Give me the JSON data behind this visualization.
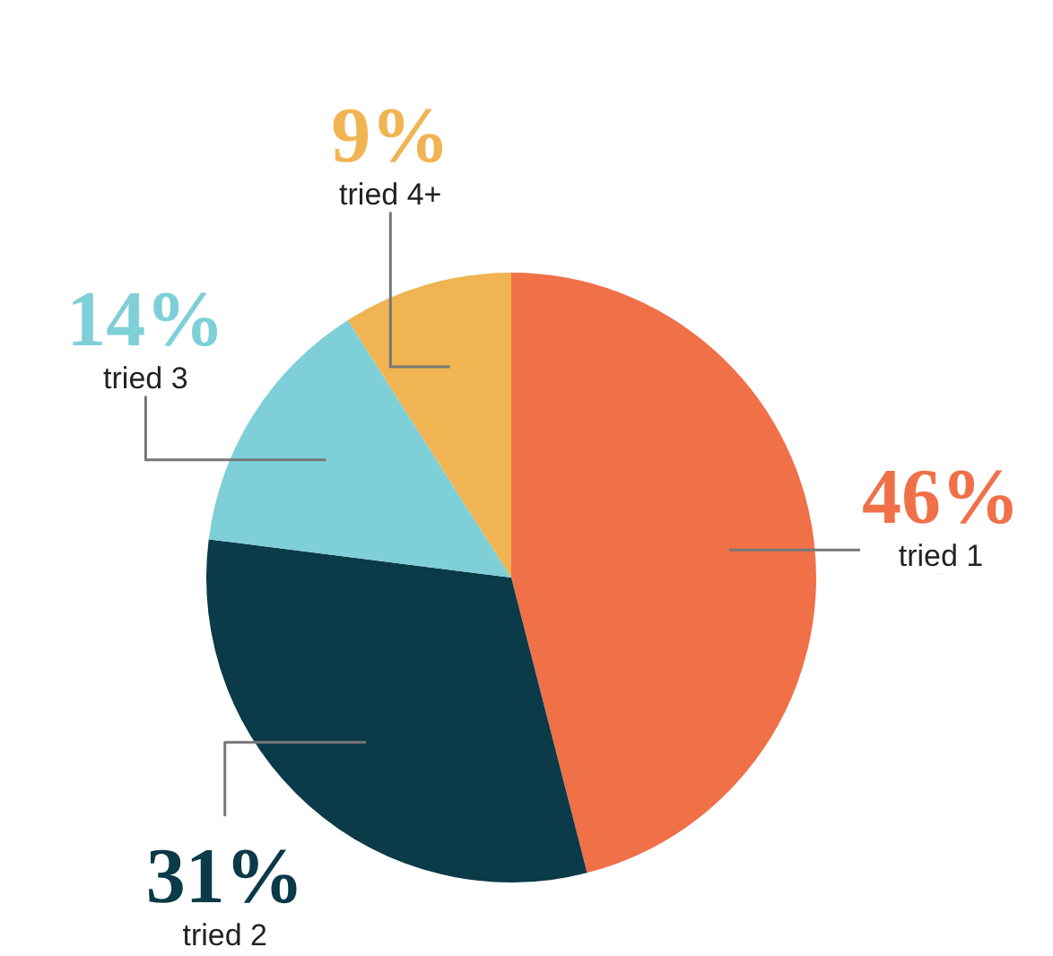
{
  "chart_data": {
    "type": "pie",
    "categories": [
      "tried 1",
      "tried 2",
      "tried 3",
      "tried 4+"
    ],
    "values": [
      46,
      31,
      14,
      9
    ],
    "colors": [
      "#f07048",
      "#0b3a48",
      "#7ecfd8",
      "#f0b452"
    ],
    "value_labels": [
      "46%",
      "31%",
      "14%",
      "9%"
    ]
  }
}
